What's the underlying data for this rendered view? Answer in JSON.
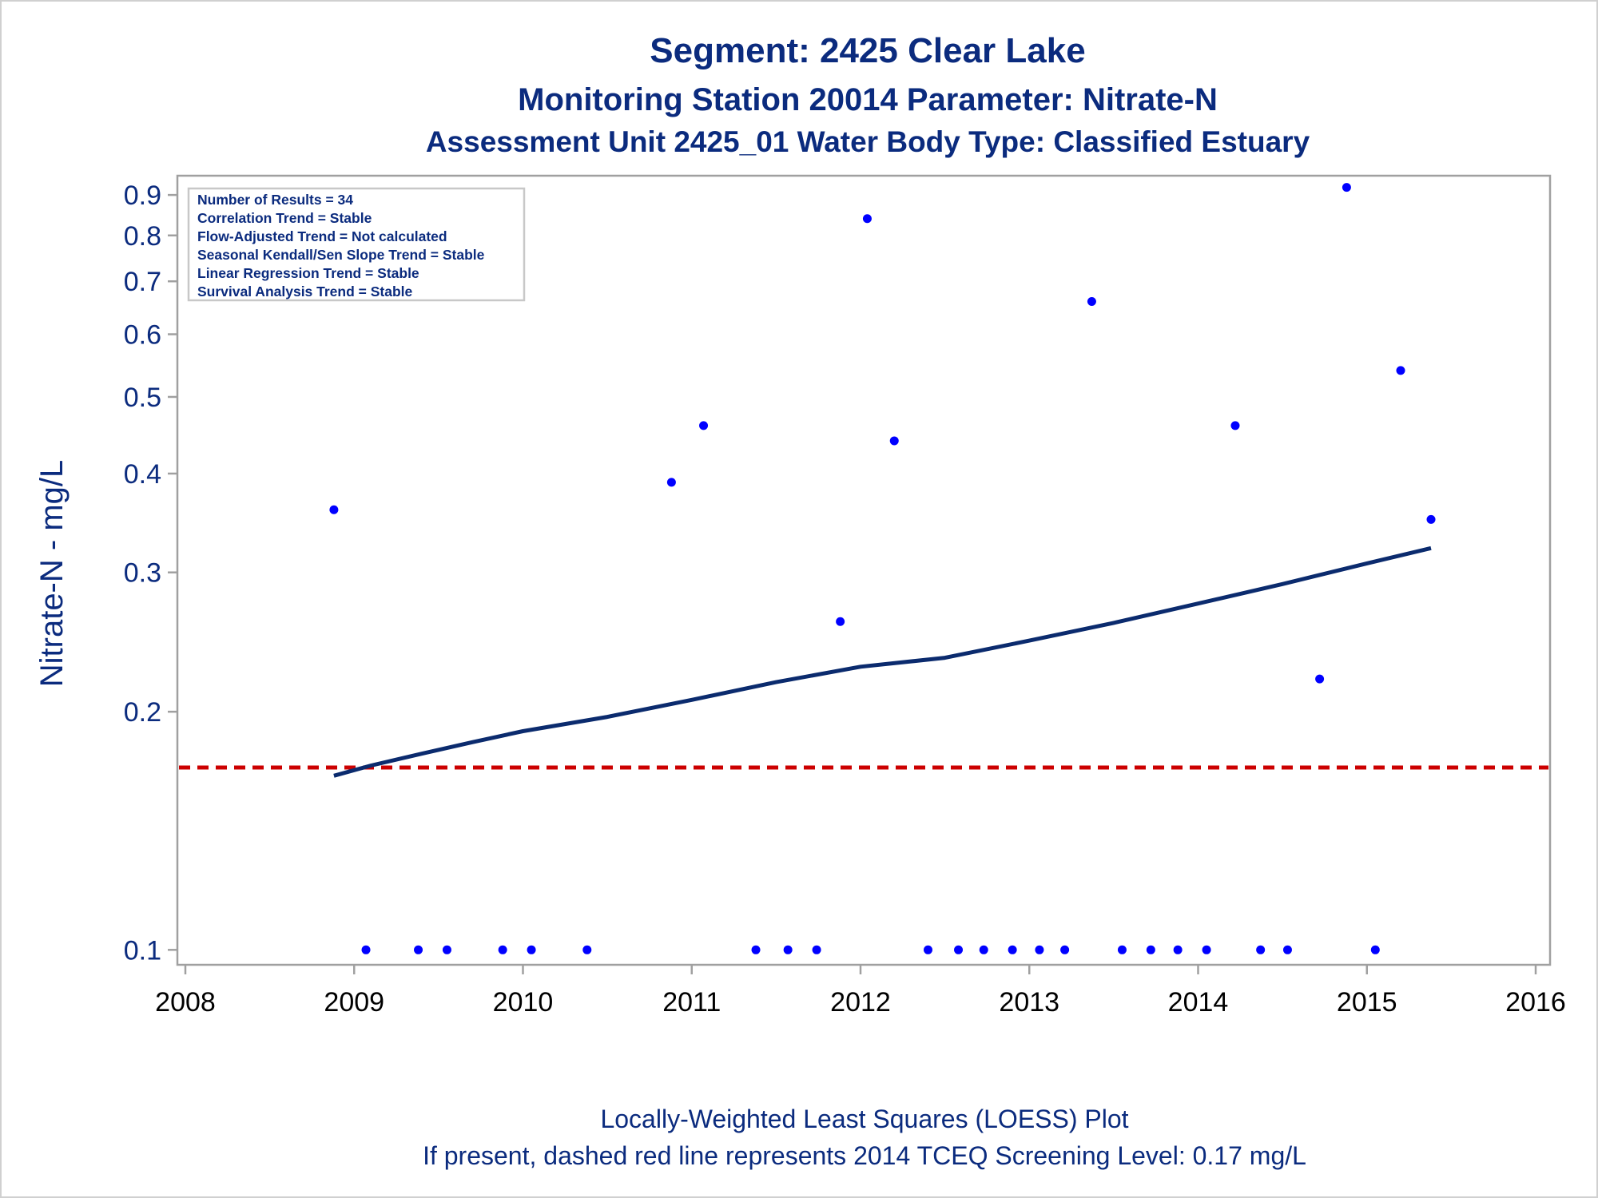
{
  "titles": {
    "line1": "Segment: 2425  Clear Lake",
    "line2": "Monitoring Station 20014 Parameter: Nitrate-N",
    "line3": "Assessment Unit 2425_01   Water Body Type: Classified Estuary"
  },
  "footnotes": {
    "line1": "Locally-Weighted Least Squares (LOESS) Plot",
    "line2": "If present, dashed red line represents 2014 TCEQ Screening Level: 0.17 mg/L"
  },
  "stats_box": [
    "Number of Results = 34",
    "Correlation Trend = Stable",
    "Flow-Adjusted Trend = Not calculated",
    "Seasonal Kendall/Sen Slope Trend = Stable",
    "Linear Regression Trend = Stable",
    "Survival Analysis Trend = Stable"
  ],
  "colors": {
    "points": "#0000ff",
    "loess": "#0b2b6e",
    "screening": "#cc0000",
    "text": "#0b2b7e",
    "axis": "#a0a0a0"
  },
  "chart_data": {
    "type": "scatter",
    "ylabel": "Nitrate-N - mg/L",
    "xlabel": "",
    "yscale": "log",
    "xlim": [
      2008,
      2016
    ],
    "ylim": [
      0.098,
      0.93
    ],
    "x_ticks": [
      2008,
      2009,
      2010,
      2011,
      2012,
      2013,
      2014,
      2015,
      2016
    ],
    "x_tick_labels": [
      "2008",
      "2009",
      "2010",
      "2011",
      "2012",
      "2013",
      "2014",
      "2015",
      "2016"
    ],
    "y_ticks": [
      0.1,
      0.2,
      0.3,
      0.4,
      0.5,
      0.6,
      0.7,
      0.8,
      0.9
    ],
    "y_tick_labels": [
      "0.1",
      "0.2",
      "0.3",
      "0.4",
      "0.5",
      "0.6",
      "0.7",
      "0.8",
      "0.9"
    ],
    "grid": false,
    "screening_level": 0.17,
    "points": [
      {
        "x": 2008.88,
        "y": 0.36
      },
      {
        "x": 2009.07,
        "y": 0.1
      },
      {
        "x": 2009.38,
        "y": 0.1
      },
      {
        "x": 2009.55,
        "y": 0.1
      },
      {
        "x": 2009.88,
        "y": 0.1
      },
      {
        "x": 2010.05,
        "y": 0.1
      },
      {
        "x": 2010.38,
        "y": 0.1
      },
      {
        "x": 2010.88,
        "y": 0.39
      },
      {
        "x": 2011.07,
        "y": 0.46
      },
      {
        "x": 2011.38,
        "y": 0.1
      },
      {
        "x": 2011.57,
        "y": 0.1
      },
      {
        "x": 2011.74,
        "y": 0.1
      },
      {
        "x": 2011.88,
        "y": 0.26
      },
      {
        "x": 2012.04,
        "y": 0.84
      },
      {
        "x": 2012.2,
        "y": 0.44
      },
      {
        "x": 2012.4,
        "y": 0.1
      },
      {
        "x": 2012.58,
        "y": 0.1
      },
      {
        "x": 2012.73,
        "y": 0.1
      },
      {
        "x": 2012.9,
        "y": 0.1
      },
      {
        "x": 2013.06,
        "y": 0.1
      },
      {
        "x": 2013.21,
        "y": 0.1
      },
      {
        "x": 2013.37,
        "y": 0.66
      },
      {
        "x": 2013.55,
        "y": 0.1
      },
      {
        "x": 2013.72,
        "y": 0.1
      },
      {
        "x": 2013.88,
        "y": 0.1
      },
      {
        "x": 2014.05,
        "y": 0.1
      },
      {
        "x": 2014.22,
        "y": 0.46
      },
      {
        "x": 2014.37,
        "y": 0.1
      },
      {
        "x": 2014.53,
        "y": 0.1
      },
      {
        "x": 2014.72,
        "y": 0.22
      },
      {
        "x": 2014.88,
        "y": 0.92
      },
      {
        "x": 2015.05,
        "y": 0.1
      },
      {
        "x": 2015.2,
        "y": 0.54
      },
      {
        "x": 2015.38,
        "y": 0.35
      }
    ],
    "loess": [
      {
        "x": 2008.88,
        "y": 0.166
      },
      {
        "x": 2009.1,
        "y": 0.171
      },
      {
        "x": 2009.4,
        "y": 0.177
      },
      {
        "x": 2009.7,
        "y": 0.183
      },
      {
        "x": 2010.0,
        "y": 0.189
      },
      {
        "x": 2010.5,
        "y": 0.197
      },
      {
        "x": 2011.0,
        "y": 0.207
      },
      {
        "x": 2011.5,
        "y": 0.218
      },
      {
        "x": 2012.0,
        "y": 0.228
      },
      {
        "x": 2012.5,
        "y": 0.234
      },
      {
        "x": 2013.0,
        "y": 0.246
      },
      {
        "x": 2013.5,
        "y": 0.259
      },
      {
        "x": 2014.0,
        "y": 0.274
      },
      {
        "x": 2014.5,
        "y": 0.29
      },
      {
        "x": 2015.0,
        "y": 0.308
      },
      {
        "x": 2015.38,
        "y": 0.322
      }
    ]
  }
}
